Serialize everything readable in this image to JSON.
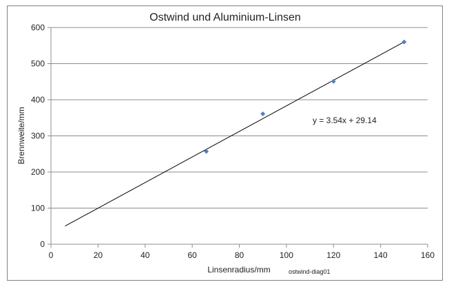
{
  "chart_data": {
    "type": "scatter",
    "title": "Ostwind und Aluminium-Linsen",
    "xlabel": "Linsenradius/mm",
    "ylabel": "Brennweite/mm",
    "xlim": [
      0,
      160
    ],
    "ylim": [
      0,
      600
    ],
    "x_ticks": [
      0,
      20,
      40,
      60,
      80,
      100,
      120,
      140,
      160
    ],
    "y_ticks": [
      0,
      100,
      200,
      300,
      400,
      500,
      600
    ],
    "grid": "horizontal",
    "series": [
      {
        "x": [
          66,
          90,
          120,
          150
        ],
        "y": [
          257,
          361,
          451,
          560
        ],
        "color": "#4f81bd",
        "marker": "diamond"
      }
    ],
    "trendline": {
      "type": "linear",
      "slope": 3.54,
      "intercept": 29.14,
      "x_range": [
        6,
        150
      ],
      "color": "#000000",
      "equation_label": "y = 3.54x + 29.14"
    },
    "annotation": "ostwind-diag01"
  }
}
